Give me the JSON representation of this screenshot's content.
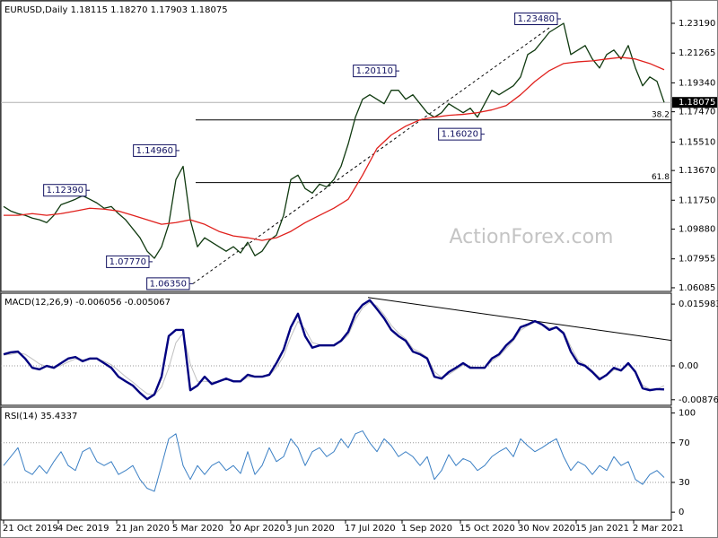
{
  "chart_data": [
    {
      "type": "line",
      "title": "EURUSD,Daily 1.18115 1.18270 1.17903 1.18075",
      "watermark": "ActionForex.com",
      "xlim": [
        -2,
        372
      ],
      "ylim": [
        1.0585,
        1.2464
      ],
      "yticks": [
        {
          "value": 1.2319,
          "label": "1.23190"
        },
        1.21265,
        {
          "value": 1.1934,
          "label": "1.19340"
        },
        {
          "value": 1.1747,
          "label": "1.17470"
        },
        {
          "value": 1.1551,
          "label": "1.15510"
        },
        {
          "value": 1.1367,
          "label": "1.13670"
        },
        {
          "value": 1.1175,
          "label": "1.11750"
        },
        {
          "value": 1.0988,
          "label": "1.09880"
        },
        1.07955,
        1.06085
      ],
      "x": [
        0,
        4,
        8,
        12,
        16,
        20,
        24,
        28,
        32,
        36,
        40,
        44,
        48,
        52,
        56,
        60,
        64,
        68,
        72,
        76,
        80,
        84,
        88,
        92,
        96,
        100,
        104,
        108,
        112,
        116,
        120,
        124,
        128,
        132,
        136,
        140,
        144,
        148,
        152,
        156,
        160,
        164,
        168,
        172,
        176,
        180,
        184,
        188,
        192,
        196,
        200,
        204,
        208,
        212,
        216,
        220,
        224,
        228,
        232,
        236,
        240,
        244,
        248,
        252,
        256,
        260,
        264,
        268,
        272,
        276,
        280,
        284,
        288,
        292,
        296,
        300,
        304,
        308,
        312,
        316,
        320,
        324,
        328,
        332,
        336,
        340,
        344,
        348,
        352,
        356,
        360,
        364,
        368
      ],
      "series": [
        {
          "color": "#103a10",
          "width": 1.3,
          "values": [
            1.1134,
            1.1105,
            1.1088,
            1.1077,
            1.1059,
            1.1048,
            1.103,
            1.1077,
            1.1146,
            1.1163,
            1.1181,
            1.1204,
            1.1181,
            1.1157,
            1.1123,
            1.1134,
            1.1088,
            1.1048,
            1.099,
            1.0932,
            1.0845,
            1.0799,
            1.0874,
            1.1019,
            1.1308,
            1.1394,
            1.1048,
            1.0874,
            1.0932,
            1.0903,
            1.0874,
            1.0845,
            1.0874,
            1.0834,
            1.0903,
            1.0816,
            1.0845,
            1.0915,
            1.0949,
            1.1077,
            1.1308,
            1.1337,
            1.125,
            1.1221,
            1.1279,
            1.1261,
            1.1308,
            1.1394,
            1.1539,
            1.1712,
            1.1828,
            1.1857,
            1.1828,
            1.1799,
            1.1886,
            1.1886,
            1.1828,
            1.1857,
            1.1799,
            1.1741,
            1.1712,
            1.1741,
            1.1799,
            1.177,
            1.1741,
            1.177,
            1.1712,
            1.1799,
            1.1886,
            1.1857,
            1.1886,
            1.1915,
            1.1972,
            1.2117,
            1.2146,
            1.2203,
            1.2261,
            1.229,
            1.2319,
            1.2117,
            1.2146,
            1.2175,
            1.2088,
            1.203,
            1.2117,
            1.2146,
            1.2088,
            1.2175,
            1.203,
            1.1915,
            1.1972,
            1.1944,
            1.18075
          ]
        },
        {
          "color": "#e0201c",
          "width": 1.3,
          "x": [
            0,
            8,
            16,
            24,
            32,
            40,
            48,
            56,
            64,
            72,
            80,
            88,
            96,
            104,
            112,
            120,
            128,
            136,
            144,
            152,
            160,
            168,
            176,
            184,
            192,
            200,
            208,
            216,
            224,
            232,
            240,
            248,
            256,
            264,
            272,
            280,
            288,
            296,
            304,
            312,
            320,
            328,
            336,
            344,
            352,
            360,
            368
          ],
          "values": [
            1.1077,
            1.1077,
            1.1088,
            1.1077,
            1.1088,
            1.1105,
            1.1123,
            1.1117,
            1.1105,
            1.1077,
            1.1048,
            1.1019,
            1.103,
            1.1048,
            1.1019,
            1.0973,
            1.0944,
            1.0932,
            1.0915,
            1.0932,
            1.0973,
            1.103,
            1.1077,
            1.1123,
            1.1181,
            1.1337,
            1.151,
            1.1597,
            1.1654,
            1.1695,
            1.1712,
            1.1724,
            1.173,
            1.1741,
            1.1759,
            1.1787,
            1.1857,
            1.1943,
            1.2013,
            1.2059,
            1.207,
            1.2076,
            1.2088,
            1.2099,
            1.2088,
            1.2059,
            1.2019
          ]
        }
      ],
      "annotations": [
        {
          "x": 310.5,
          "value": 1.2348,
          "label": "1.23480"
        },
        {
          "x": 220.5,
          "value": 1.2011,
          "label": "1.20110"
        },
        {
          "x": 98,
          "value": 1.1496,
          "label": "1.14960"
        },
        {
          "x": 48,
          "value": 1.1239,
          "label": "1.12390"
        },
        {
          "x": 83,
          "value": 1.0777,
          "label": "1.07770"
        },
        {
          "x": 105.5,
          "value": 1.0635,
          "label": "1.06350"
        },
        {
          "x": 268,
          "value": 1.1602,
          "label": "1.16020"
        }
      ],
      "levels": [
        {
          "x": 107,
          "value": 1.1694,
          "label": "38.2"
        },
        {
          "x": 107,
          "value": 1.1289,
          "label": "61.8"
        }
      ],
      "trend_lines": [
        {
          "x": [
            105.5,
            304
          ],
          "values": [
            1.0635,
            1.229
          ],
          "dashed": true
        }
      ],
      "last_price": {
        "value": 1.18075,
        "label": "1.18075"
      }
    },
    {
      "type": "line",
      "title": "MACD(12,26,9) -0.006056 -0.005067",
      "xlim": [
        -2,
        372
      ],
      "ylim": [
        -0.0102,
        0.0188
      ],
      "yticks": [
        0.015983,
        {
          "value": 0,
          "label": "0.00"
        },
        -0.008762
      ],
      "level_lines": [
        0
      ],
      "x": [
        0,
        4,
        8,
        12,
        16,
        20,
        24,
        28,
        32,
        36,
        40,
        44,
        48,
        52,
        56,
        60,
        64,
        68,
        72,
        76,
        80,
        84,
        88,
        92,
        96,
        100,
        104,
        108,
        112,
        116,
        120,
        124,
        128,
        132,
        136,
        140,
        144,
        148,
        152,
        156,
        160,
        164,
        168,
        172,
        176,
        180,
        184,
        188,
        192,
        196,
        200,
        204,
        208,
        212,
        216,
        220,
        224,
        228,
        232,
        236,
        240,
        244,
        248,
        252,
        256,
        260,
        264,
        268,
        272,
        276,
        280,
        284,
        288,
        292,
        296,
        300,
        304,
        308,
        312,
        316,
        320,
        324,
        328,
        332,
        336,
        340,
        344,
        348,
        352,
        356,
        360,
        364,
        368
      ],
      "series": [
        {
          "color": "#c0c0c0",
          "width": 1,
          "values": [
            0.0028,
            0.003,
            0.0034,
            0.003,
            0.0018,
            0.0005,
            -0.0002,
            -0.0003,
            0.0001,
            0.001,
            0.0018,
            0.0016,
            0.0017,
            0.0018,
            0.0012,
            0.0003,
            -0.0012,
            -0.0028,
            -0.0042,
            -0.0058,
            -0.0072,
            -0.0075,
            -0.0055,
            -0.0005,
            0.006,
            0.0085,
            0.0005,
            -0.004,
            -0.004,
            -0.0042,
            -0.004,
            -0.0036,
            -0.0038,
            -0.004,
            -0.003,
            -0.0028,
            -0.0028,
            -0.0025,
            -0.0005,
            0.0025,
            0.0075,
            0.0115,
            0.0095,
            0.006,
            0.0055,
            0.0053,
            0.0053,
            0.0062,
            0.008,
            0.012,
            0.015,
            0.0165,
            0.0155,
            0.0132,
            0.0105,
            0.0085,
            0.007,
            0.0045,
            0.0035,
            0.0022,
            -0.0015,
            -0.003,
            -0.0022,
            -0.001,
            0.0002,
            -0.0002,
            -0.0004,
            -0.0005,
            0.0012,
            0.0025,
            0.0045,
            0.0065,
            0.0092,
            0.0104,
            0.0113,
            0.0109,
            0.0098,
            0.01,
            0.0088,
            0.005,
            0.0015,
            0.0003,
            -0.0012,
            -0.003,
            -0.0026,
            -0.001,
            -0.0012,
            0.0002,
            -0.0012,
            -0.005,
            -0.006,
            -0.006,
            -0.0051
          ]
        },
        {
          "color": "#000080",
          "width": 2.4,
          "values": [
            0.003,
            0.0035,
            0.0037,
            0.0019,
            -0.0005,
            -0.0009,
            0,
            -0.0005,
            0.0007,
            0.0019,
            0.0023,
            0.0012,
            0.0019,
            0.0019,
            0.0007,
            -0.0005,
            -0.0028,
            -0.004,
            -0.0051,
            -0.007,
            -0.0086,
            -0.0074,
            -0.0028,
            0.0077,
            0.0093,
            0.0093,
            -0.0063,
            -0.0051,
            -0.0028,
            -0.0047,
            -0.004,
            -0.0033,
            -0.004,
            -0.004,
            -0.0023,
            -0.0028,
            -0.0028,
            -0.0023,
            0.0007,
            0.0042,
            0.01,
            0.0135,
            0.0077,
            0.0047,
            0.0053,
            0.0053,
            0.0053,
            0.0065,
            0.0088,
            0.0135,
            0.0158,
            0.017,
            0.0147,
            0.0123,
            0.0093,
            0.0077,
            0.0065,
            0.0037,
            0.003,
            0.0019,
            -0.0028,
            -0.0033,
            -0.0016,
            -0.0005,
            0.0007,
            -0.0005,
            -0.0005,
            -0.0005,
            0.0019,
            0.003,
            0.0053,
            0.007,
            0.01,
            0.0107,
            0.0116,
            0.0107,
            0.0093,
            0.01,
            0.0084,
            0.0037,
            0.0007,
            0,
            -0.0016,
            -0.0035,
            -0.0023,
            -0.0005,
            -0.0012,
            0.0007,
            -0.0016,
            -0.0058,
            -0.0063,
            -0.006,
            -0.0061
          ]
        }
      ],
      "trend_lines": [
        {
          "x": [
            203,
            372
          ],
          "values": [
            0.0177,
            0.0066
          ],
          "dashed": false
        }
      ]
    },
    {
      "type": "line",
      "title": "RSI(14) 35.4337",
      "xlim": [
        -2,
        372
      ],
      "ylim": [
        -8,
        106
      ],
      "yticks": [
        100,
        70,
        30,
        0
      ],
      "level_lines": [
        70,
        30
      ],
      "xticks": [
        {
          "value": 0,
          "label": "21 Oct 2019"
        },
        {
          "value": 30.5,
          "label": "4 Dec 2019"
        },
        {
          "value": 63,
          "label": "21 Jan 2020"
        },
        {
          "value": 94.5,
          "label": "5 Mar 2020"
        },
        {
          "value": 126.5,
          "label": "20 Apr 2020"
        },
        {
          "value": 158,
          "label": "3 Jun 2020"
        },
        {
          "value": 190.5,
          "label": "17 Jul 2020"
        },
        {
          "value": 222,
          "label": "1 Sep 2020"
        },
        {
          "value": 254.5,
          "label": "15 Oct 2020"
        },
        {
          "value": 287,
          "label": "30 Nov 2020"
        },
        {
          "value": 319,
          "label": "15 Jan 2021"
        },
        {
          "value": 351,
          "label": "2 Mar 2021"
        }
      ],
      "x": [
        0,
        4,
        8,
        12,
        16,
        20,
        24,
        28,
        32,
        36,
        40,
        44,
        48,
        52,
        56,
        60,
        64,
        68,
        72,
        76,
        80,
        84,
        88,
        92,
        96,
        100,
        104,
        108,
        112,
        116,
        120,
        124,
        128,
        132,
        136,
        140,
        144,
        148,
        152,
        156,
        160,
        164,
        168,
        172,
        176,
        180,
        184,
        188,
        192,
        196,
        200,
        204,
        208,
        212,
        216,
        220,
        224,
        228,
        232,
        236,
        240,
        244,
        248,
        252,
        256,
        260,
        264,
        268,
        272,
        276,
        280,
        284,
        288,
        292,
        296,
        300,
        304,
        308,
        312,
        316,
        320,
        324,
        328,
        332,
        336,
        340,
        344,
        348,
        352,
        356,
        360,
        364,
        368
      ],
      "series": [
        {
          "color": "#3a7fc4",
          "width": 1,
          "values": [
            47,
            56,
            65,
            42,
            38,
            47,
            39,
            51,
            61,
            47,
            42,
            61,
            65,
            51,
            47,
            51,
            38,
            42,
            47,
            33,
            24,
            21,
            47,
            74,
            79,
            47,
            33,
            47,
            38,
            47,
            51,
            42,
            47,
            39,
            61,
            38,
            47,
            65,
            51,
            56,
            74,
            65,
            47,
            61,
            65,
            56,
            61,
            74,
            65,
            79,
            82,
            70,
            61,
            74,
            67,
            56,
            61,
            56,
            47,
            56,
            33,
            42,
            58,
            47,
            54,
            51,
            42,
            47,
            56,
            61,
            65,
            56,
            74,
            67,
            61,
            65,
            70,
            74,
            56,
            42,
            51,
            47,
            38,
            47,
            42,
            56,
            47,
            51,
            33,
            28,
            38,
            42,
            35
          ]
        }
      ]
    }
  ]
}
